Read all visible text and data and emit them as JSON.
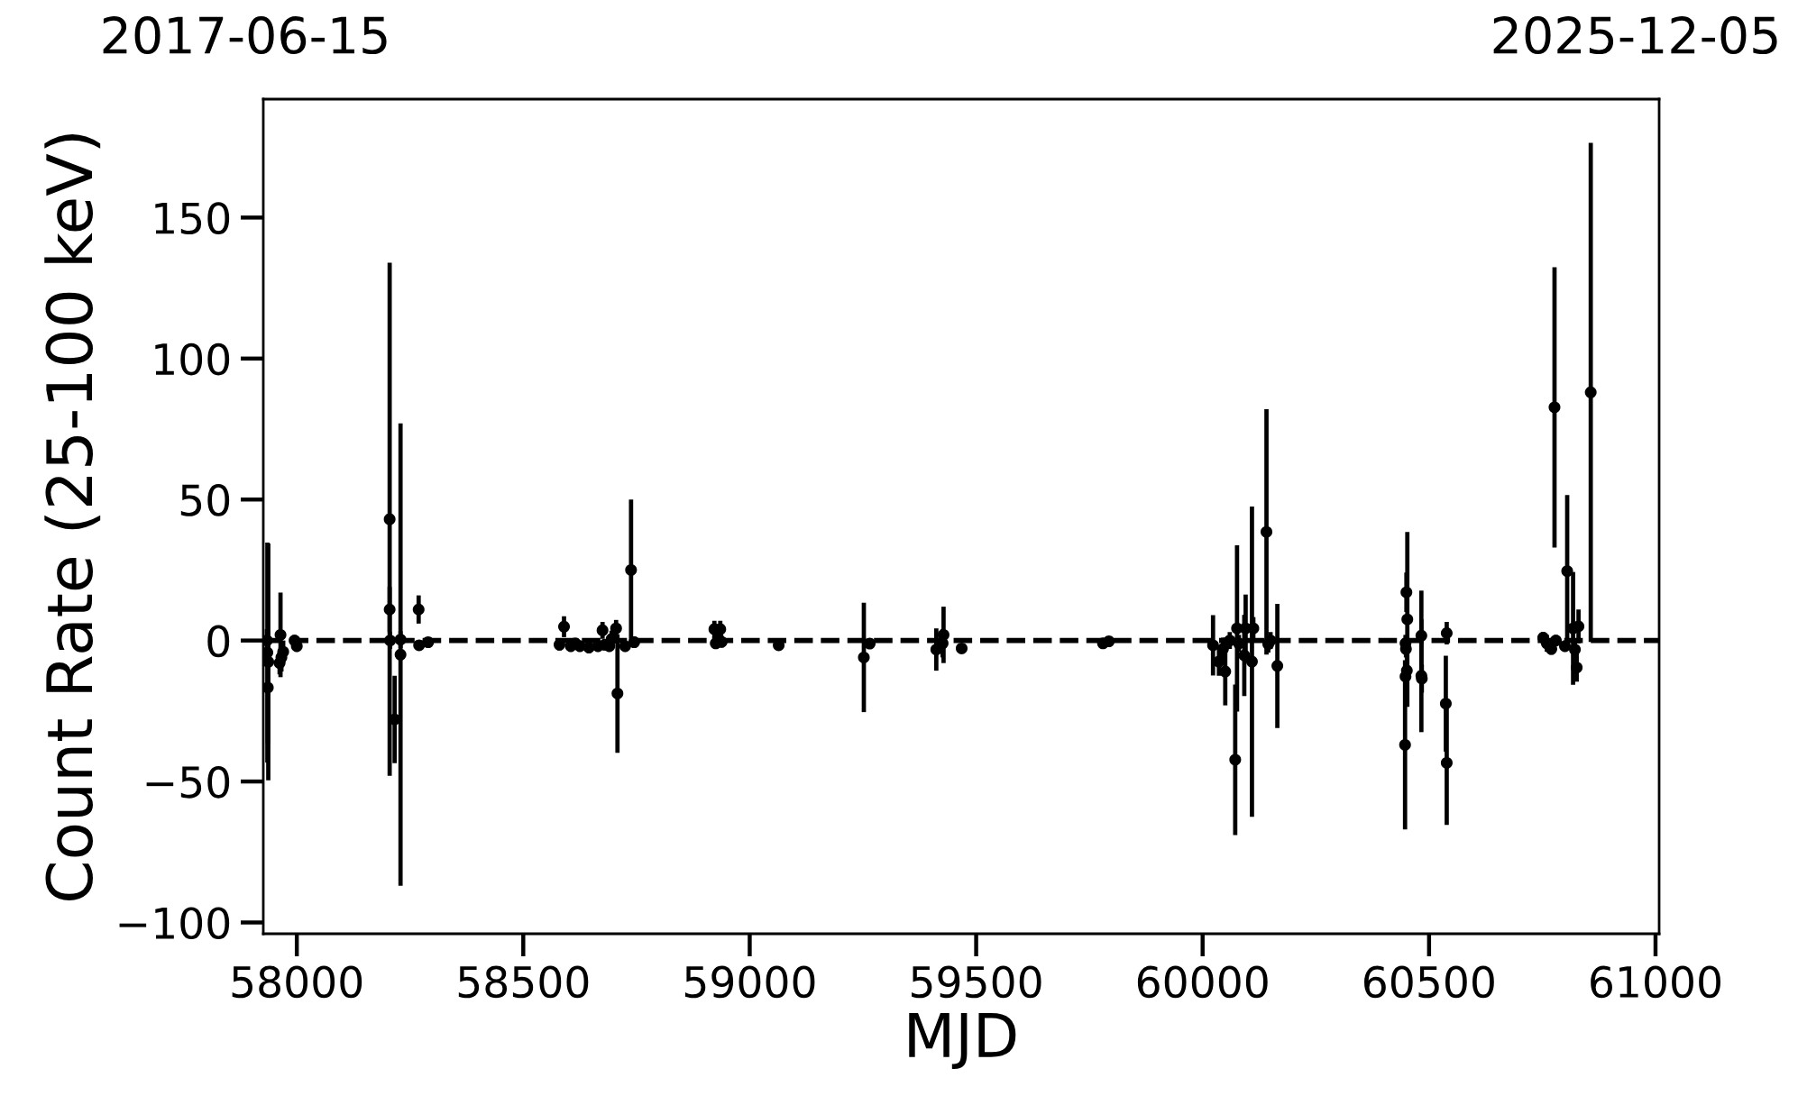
{
  "chart_data": {
    "type": "scatter",
    "xlabel": "MJD",
    "ylabel": "Count Rate (25-100 keV)",
    "annotations": [
      "2017-06-15",
      "2025-12-05"
    ],
    "color": "#000000",
    "marker": "circle",
    "x": [
      57934,
      57935,
      57937,
      57936,
      57964,
      57962,
      57966,
      57970,
      57995,
      58000,
      58205,
      58205,
      58206,
      58216,
      58229,
      58229,
      58269,
      58270,
      58290,
      58580,
      58590,
      58605,
      58615,
      58625,
      58645,
      58665,
      58675,
      58680,
      58690,
      58695,
      58705,
      58708,
      58725,
      58738,
      58745,
      58922,
      58925,
      58930,
      58935,
      58938,
      59064,
      59252,
      59265,
      59412,
      59428,
      59426,
      59468,
      59780,
      59793,
      60023,
      60036,
      60045,
      60050,
      60060,
      60072,
      60076,
      60080,
      60092,
      60095,
      60109,
      60112,
      60141,
      60145,
      60150,
      60165,
      60447,
      60450,
      60452,
      60448,
      60449,
      60448,
      60451,
      60483,
      60483,
      60484,
      60539,
      60537,
      60539,
      60752,
      60760,
      60770,
      60777,
      60780,
      60800,
      60805,
      60818,
      60822,
      60826,
      60830,
      60857
    ],
    "values": [
      0,
      -4.3,
      -7.6,
      -16.7,
      2,
      -8,
      -6,
      -4,
      0,
      -2,
      43,
      11,
      0,
      -28,
      -5,
      0.3,
      11,
      -1.7,
      -0.6,
      -1.5,
      4.9,
      -2,
      -1,
      -2,
      -2.5,
      -2,
      3.6,
      -1.5,
      -2,
      0.5,
      4.3,
      -18.8,
      -2,
      25,
      -0.6,
      4,
      -1,
      1,
      4,
      -0.5,
      -1.7,
      -6,
      -1.1,
      -3.2,
      2,
      -1,
      -2.8,
      -1,
      -0.3,
      -1.7,
      -7.5,
      -3,
      -11,
      0,
      -42.3,
      4.3,
      -1,
      -5.3,
      4.3,
      -7.5,
      4.3,
      38.5,
      -1.3,
      0,
      -9,
      -37,
      17.1,
      7.5,
      -1,
      -3,
      -12.8,
      -10.7,
      1.7,
      -12.5,
      -13.5,
      2.6,
      -22.4,
      -43.4,
      1,
      -1,
      -3,
      82.7,
      0,
      -2,
      24.6,
      4.3,
      -3.2,
      -9.6,
      5,
      88
    ],
    "errors": [
      4,
      39,
      42,
      20,
      15,
      4,
      5,
      4,
      2,
      2,
      91,
      8,
      3,
      15.5,
      82,
      3,
      5,
      1.5,
      1.5,
      2,
      3.7,
      2,
      1.5,
      2,
      2,
      2,
      3,
      2,
      2,
      3,
      3,
      21,
      2,
      25,
      2,
      3,
      2,
      2,
      3,
      2,
      1.5,
      19.4,
      1.5,
      7.5,
      10,
      5,
      1.5,
      1,
      1,
      10.7,
      5,
      4,
      12,
      3,
      26.7,
      29.5,
      3,
      14.4,
      12,
      55,
      4,
      43.5,
      3,
      3,
      22,
      30,
      7,
      31,
      3,
      3,
      5,
      5,
      16,
      20,
      5,
      4,
      17,
      22,
      2,
      3,
      2,
      49.7,
      2,
      2,
      27,
      20,
      3,
      5,
      6,
      88.5
    ],
    "xlim": [
      57926,
      61008
    ],
    "xticks": [
      58000,
      58500,
      59000,
      59500,
      60000,
      60500,
      61000
    ],
    "ylim": [
      -104,
      192
    ],
    "yticks": [
      {
        "value": -100,
        "label": "−100"
      },
      {
        "value": -50,
        "label": "−50"
      },
      0,
      50,
      100,
      150
    ],
    "ref_lines": [
      {
        "axis": "y",
        "value": 0,
        "color": "#000000",
        "line_style": "dashed"
      }
    ]
  }
}
